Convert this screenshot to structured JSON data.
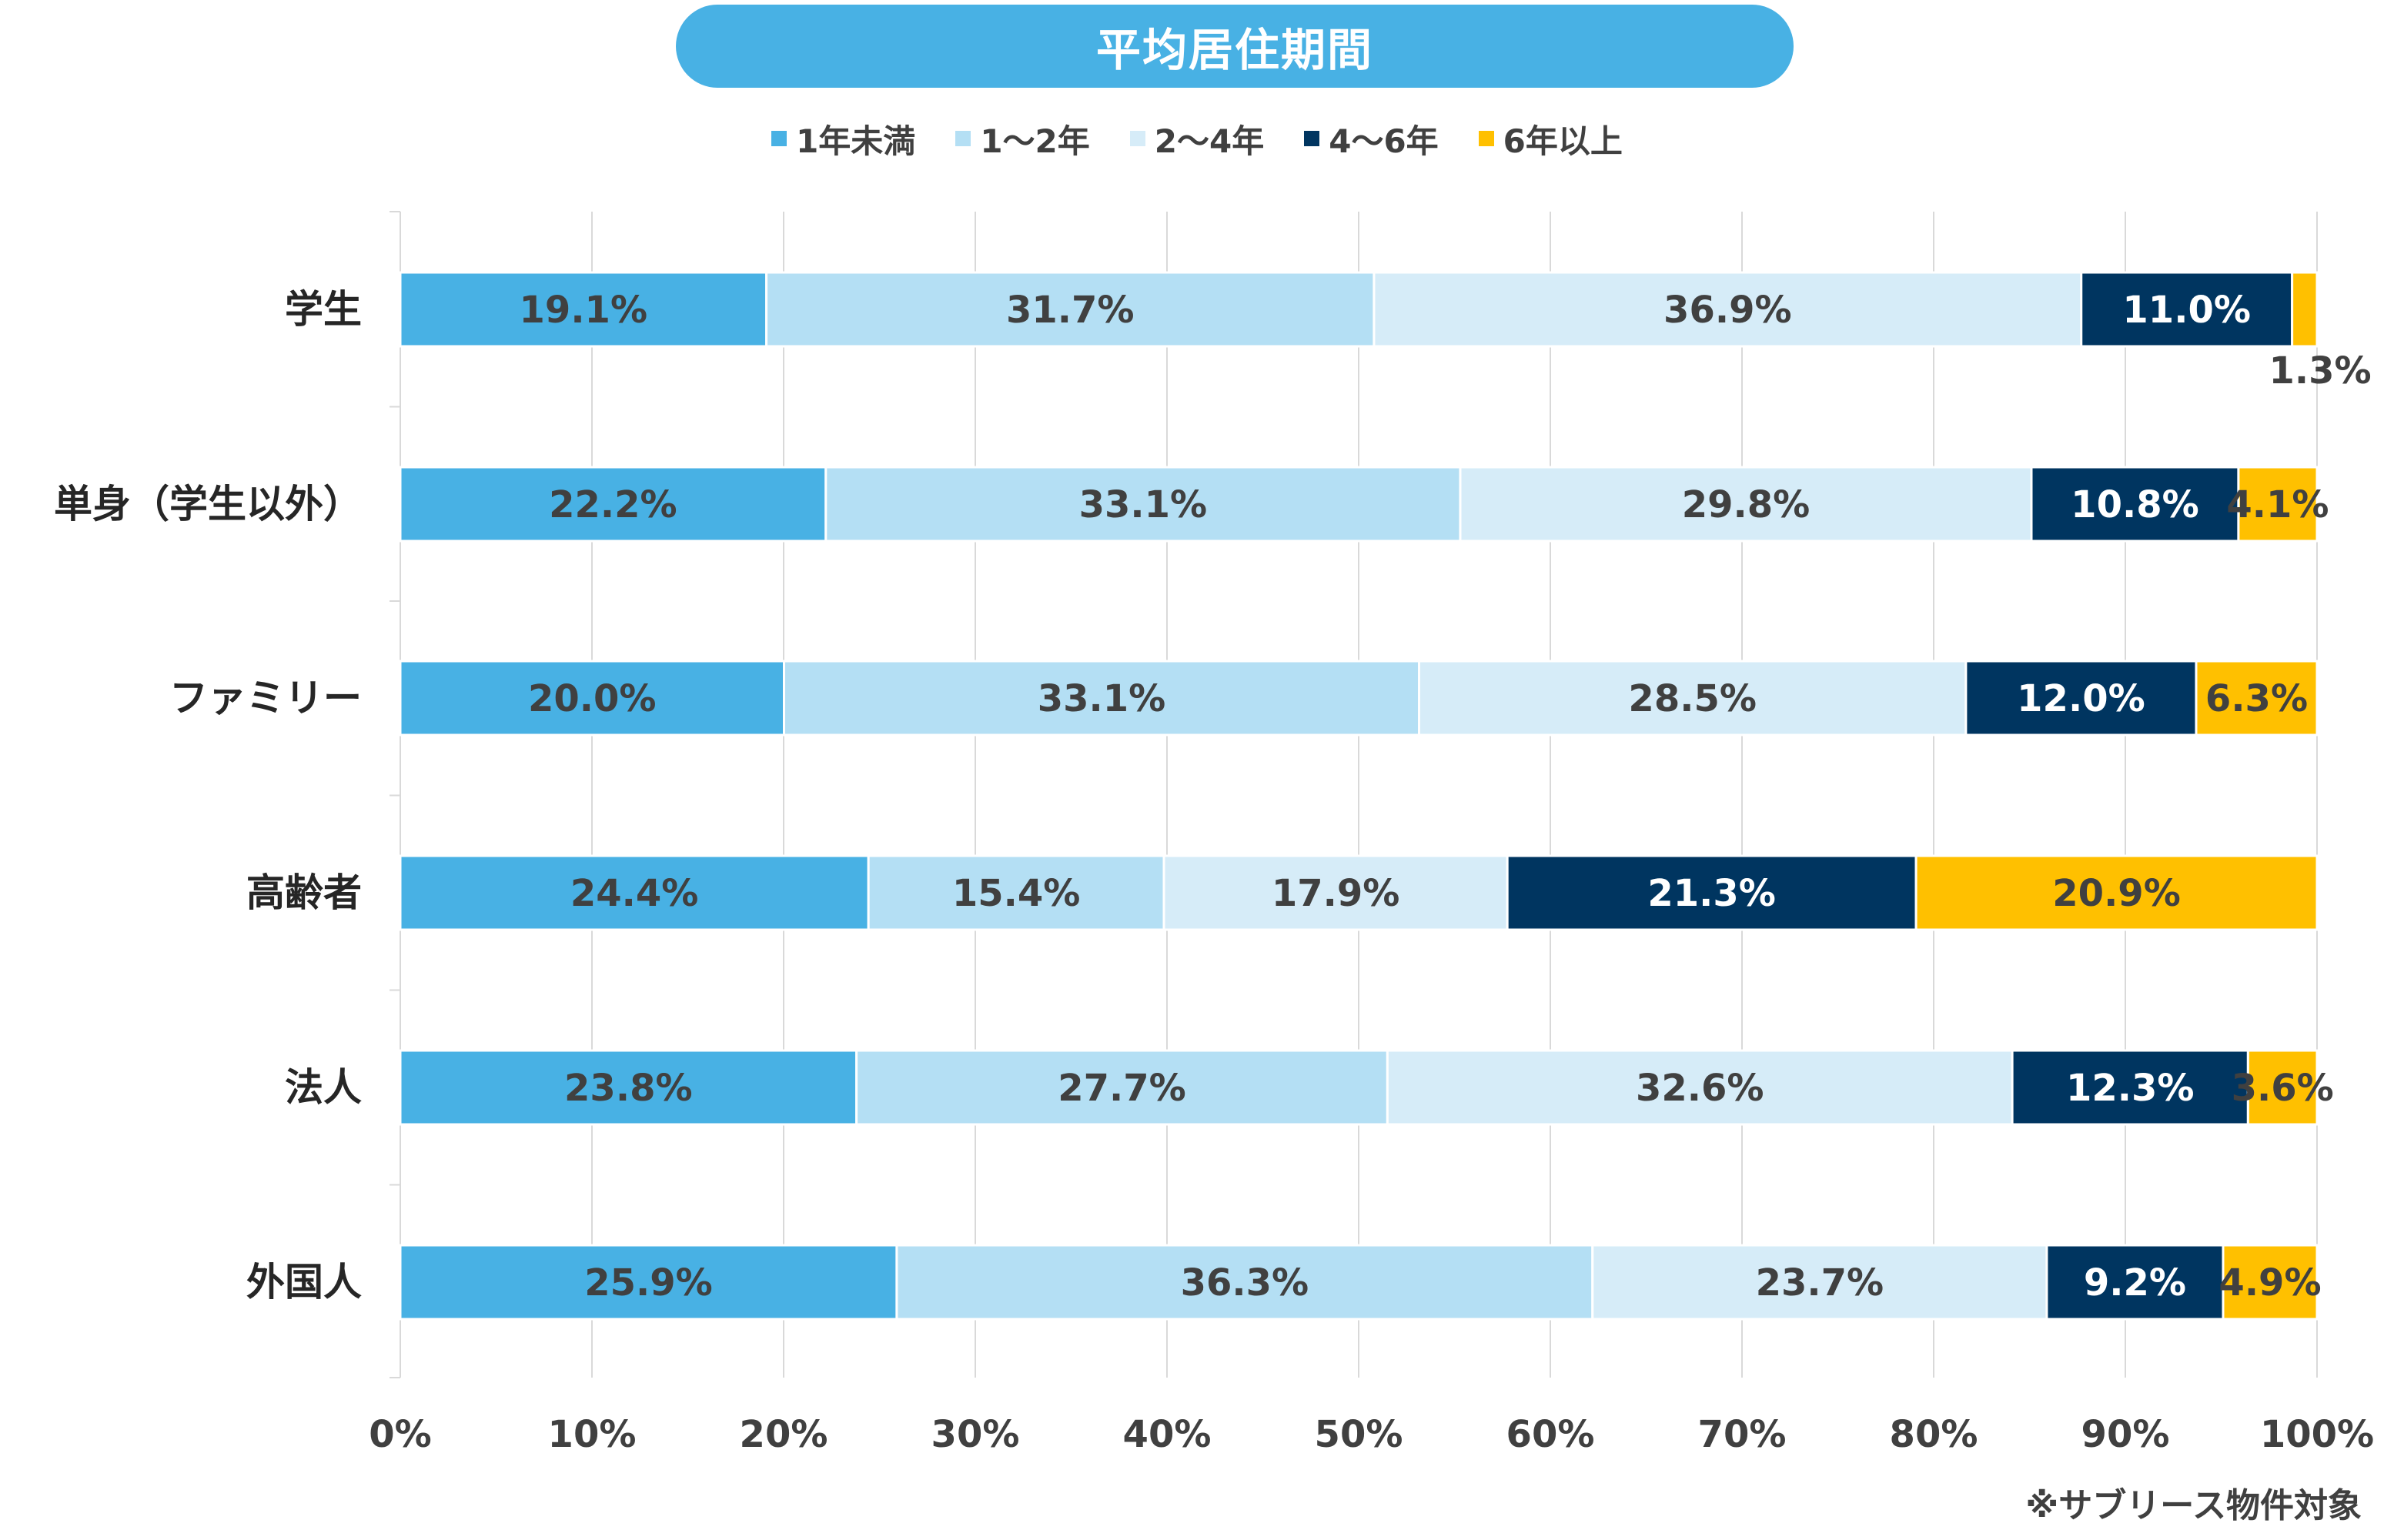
{
  "title": "平均居住期間",
  "note": "※サブリース物件対象",
  "colors": [
    "#48b1e4",
    "#b4dff4",
    "#d6ecf8",
    "#003560",
    "#ffc000"
  ],
  "label_colors": [
    "#404040",
    "#404040",
    "#404040",
    "#ffffff",
    "#404040"
  ],
  "chart_data": {
    "type": "bar",
    "orientation": "horizontal",
    "stacked": "100%",
    "categories": [
      "学生",
      "単身（学生以外）",
      "ファミリー",
      "高齢者",
      "法人",
      "外国人"
    ],
    "series": [
      {
        "name": "1年未満",
        "values": [
          19.1,
          22.2,
          20.0,
          24.4,
          23.8,
          25.9
        ]
      },
      {
        "name": "1～2年",
        "values": [
          31.7,
          33.1,
          33.1,
          15.4,
          27.7,
          36.3
        ]
      },
      {
        "name": "2～4年",
        "values": [
          36.9,
          29.8,
          28.5,
          17.9,
          32.6,
          23.7
        ]
      },
      {
        "name": "4～6年",
        "values": [
          11.0,
          10.8,
          12.0,
          21.3,
          12.3,
          9.2
        ]
      },
      {
        "name": "6年以上",
        "values": [
          1.3,
          4.1,
          6.3,
          20.9,
          3.6,
          4.9
        ]
      }
    ],
    "data_labels": [
      [
        "19.1%",
        "31.7%",
        "36.9%",
        "11.0%",
        "1.3%"
      ],
      [
        "22.2%",
        "33.1%",
        "29.8%",
        "10.8%",
        "4.1%"
      ],
      [
        "20.0%",
        "33.1%",
        "28.5%",
        "12.0%",
        "6.3%"
      ],
      [
        "24.4%",
        "15.4%",
        "17.9%",
        "21.3%",
        "20.9%"
      ],
      [
        "23.8%",
        "27.7%",
        "32.6%",
        "12.3%",
        "3.6%"
      ],
      [
        "25.9%",
        "36.3%",
        "23.7%",
        "9.2%",
        "4.9%"
      ]
    ],
    "xlim": [
      0,
      100
    ],
    "xticks": [
      "0%",
      "10%",
      "20%",
      "30%",
      "40%",
      "50%",
      "60%",
      "70%",
      "80%",
      "90%",
      "100%"
    ],
    "grid": true,
    "legend": "top"
  }
}
